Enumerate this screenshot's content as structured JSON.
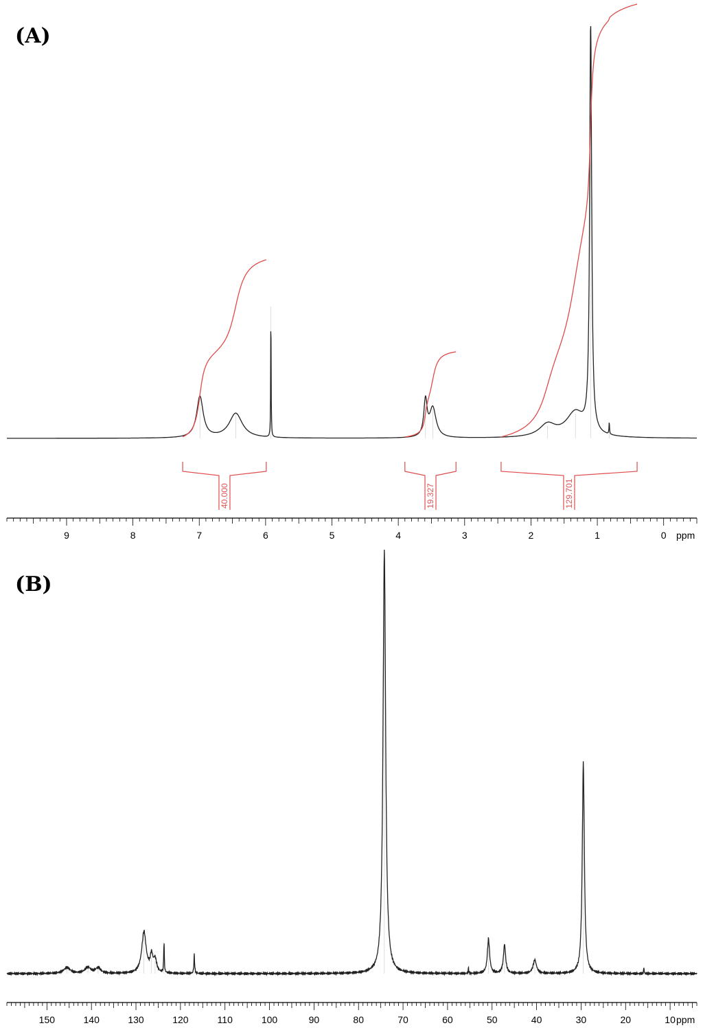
{
  "chart_data": [
    {
      "panel": "(A)",
      "type": "line",
      "xunit": "ppm",
      "xlim": [
        9.9,
        -0.5
      ],
      "x_ticks": [
        "9",
        "8",
        "7",
        "6",
        "5",
        "4",
        "3",
        "2",
        "1",
        "0"
      ],
      "peaks": [
        {
          "x": 6.99,
          "height": 0.1
        },
        {
          "x": 6.45,
          "height": 0.06
        },
        {
          "x": 5.92,
          "height": 0.32
        },
        {
          "x": 3.59,
          "height": 0.086
        },
        {
          "x": 3.48,
          "height": 0.072
        },
        {
          "x": 1.75,
          "height": 0.03
        },
        {
          "x": 1.33,
          "height": 0.06
        },
        {
          "x": 1.1,
          "height": 1.0
        },
        {
          "x": 0.82,
          "height": 0.03
        }
      ],
      "integrals": [
        {
          "label": "40.000",
          "range": [
            7.25,
            5.99
          ]
        },
        {
          "label": "19.327",
          "range": [
            3.9,
            3.13
          ]
        },
        {
          "label": "129.701",
          "range": [
            2.45,
            0.4
          ]
        }
      ]
    },
    {
      "panel": "(B)",
      "type": "line",
      "xunit": "ppm",
      "xlim": [
        159.0,
        4.0
      ],
      "x_ticks": [
        "150",
        "140",
        "130",
        "120",
        "110",
        "100",
        "90",
        "80",
        "70",
        "60",
        "50",
        "40",
        "30",
        "20",
        "10"
      ],
      "peaks": [
        {
          "x": 145.5,
          "height": 0.014
        },
        {
          "x": 140.8,
          "height": 0.014
        },
        {
          "x": 138.5,
          "height": 0.013
        },
        {
          "x": 128.2,
          "height": 0.098
        },
        {
          "x": 126.5,
          "height": 0.038
        },
        {
          "x": 125.7,
          "height": 0.03
        },
        {
          "x": 123.7,
          "height": 0.074
        },
        {
          "x": 116.9,
          "height": 0.045
        },
        {
          "x": 74.2,
          "height": 1.0
        },
        {
          "x": 55.3,
          "height": 0.015
        },
        {
          "x": 50.8,
          "height": 0.082
        },
        {
          "x": 47.2,
          "height": 0.068
        },
        {
          "x": 40.4,
          "height": 0.032
        },
        {
          "x": 29.5,
          "height": 0.5
        },
        {
          "x": 15.9,
          "height": 0.016
        }
      ]
    }
  ]
}
